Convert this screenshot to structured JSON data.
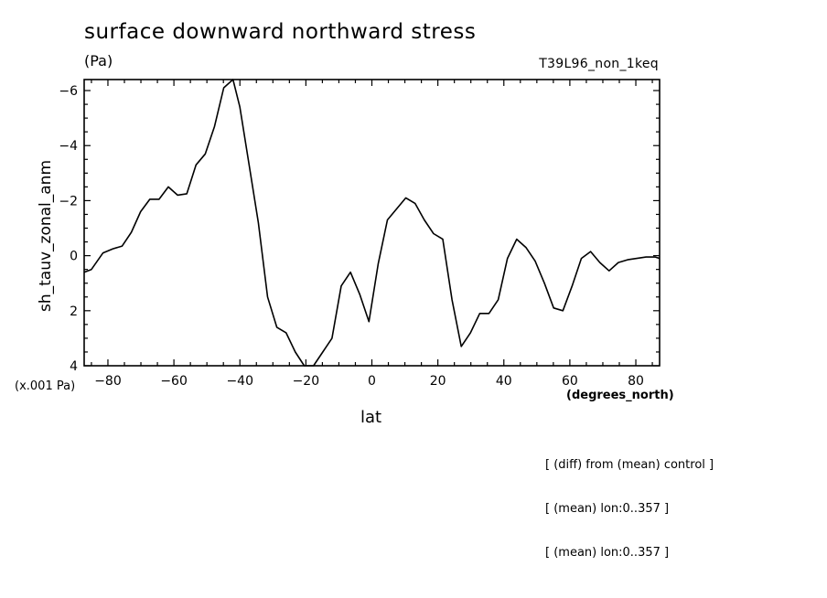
{
  "chart_data": {
    "type": "line",
    "title": "surface downward northward stress",
    "units": "(Pa)",
    "run_id": "T39L96_non_1keq",
    "ylabel": "sh_tauv_zonal_anm",
    "y_scale_note": "(x.001 Pa)",
    "xlabel": "lat",
    "x_units": "(degrees_north)",
    "xlim": [
      -87.2,
      87.2
    ],
    "ylim": [
      4,
      -6.4
    ],
    "y_axis_inverted": true,
    "x_ticks": [
      -80,
      -60,
      -40,
      -20,
      0,
      20,
      40,
      60,
      80
    ],
    "x_tick_labels": [
      "−80",
      "−60",
      "−40",
      "−20",
      "0",
      "20",
      "40",
      "60",
      "80"
    ],
    "y_ticks": [
      -6,
      -4,
      -2,
      0,
      2,
      4
    ],
    "y_tick_labels": [
      "−6",
      "−4",
      "−2",
      "0",
      "2",
      "4"
    ],
    "grid": false,
    "series": [
      {
        "x": [
          -87.2,
          -85,
          -81.5,
          -78.5,
          -75.7,
          -72.9,
          -70.1,
          -67.3,
          -64.5,
          -61.7,
          -58.9,
          -56.1,
          -53.3,
          -50.5,
          -47.7,
          -44.9,
          -42.1,
          -40,
          -37.2,
          -34.4,
          -31.6,
          -28.8,
          -26,
          -23.2,
          -20.5,
          -17.7,
          -14.9,
          -12.1,
          -9.3,
          -6.5,
          -3.7,
          -0.9,
          1.9,
          4.7,
          7.5,
          10.3,
          13.1,
          15.9,
          18.7,
          21.5,
          24.3,
          27.1,
          29.9,
          32.7,
          35.5,
          38.3,
          41.1,
          43.9,
          46.7,
          49.5,
          52.3,
          55.1,
          57.9,
          60.7,
          63.5,
          66.3,
          69.1,
          71.9,
          74.7,
          77.5,
          80.3,
          83.1,
          85.9,
          87.2
        ],
        "values": [
          0.6,
          0.5,
          -0.1,
          -0.25,
          -0.35,
          -0.85,
          -1.6,
          -2.05,
          -2.05,
          -2.5,
          -2.2,
          -2.25,
          -3.3,
          -3.7,
          -4.7,
          -6.1,
          -6.4,
          -5.4,
          -3.3,
          -1.2,
          1.5,
          2.6,
          2.8,
          3.5,
          4.0,
          4.0,
          3.5,
          3.0,
          1.1,
          0.6,
          1.4,
          2.4,
          0.3,
          -1.3,
          -1.7,
          -2.1,
          -1.9,
          -1.3,
          -0.8,
          -0.6,
          1.6,
          3.3,
          2.8,
          2.1,
          2.1,
          1.6,
          0.1,
          -0.6,
          -0.3,
          0.2,
          1.0,
          1.9,
          2.0,
          1.1,
          0.1,
          -0.15,
          0.25,
          0.55,
          0.25,
          0.15,
          0.1,
          0.05,
          0.05,
          0.1
        ]
      }
    ]
  },
  "notes": [
    "[ (diff) from (mean) control ]",
    "[ (mean) lon:0..357 ]",
    "[ (mean) lon:0..357 ]"
  ]
}
